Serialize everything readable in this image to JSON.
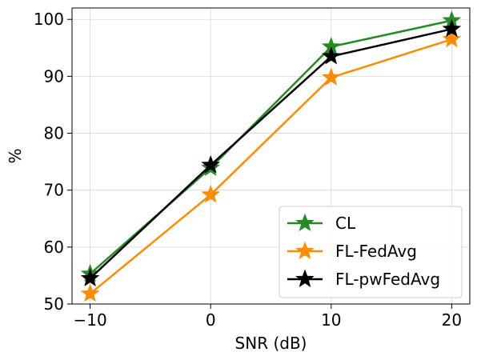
{
  "chart_data": {
    "type": "line",
    "title": "",
    "xlabel": "SNR (dB)",
    "ylabel": "%",
    "x": [
      -10,
      0,
      10,
      20
    ],
    "xlim": [
      -11.5,
      21.5
    ],
    "ylim": [
      50,
      102
    ],
    "xticks": [
      "−10",
      "0",
      "10",
      "20"
    ],
    "yticks": [
      "50",
      "60",
      "70",
      "80",
      "90",
      "100"
    ],
    "grid": true,
    "legend_position": "lower-right",
    "series": [
      {
        "name": "CL",
        "values": [
          55.3,
          73.9,
          95.2,
          99.8
        ],
        "color": "#228b22",
        "marker": "star"
      },
      {
        "name": "FL-FedAvg",
        "values": [
          51.8,
          69.2,
          89.8,
          96.5
        ],
        "color": "#ff8c00",
        "marker": "star"
      },
      {
        "name": "FL-pwFedAvg",
        "values": [
          54.5,
          74.4,
          93.5,
          98.3
        ],
        "color": "#000000",
        "marker": "star"
      }
    ]
  }
}
